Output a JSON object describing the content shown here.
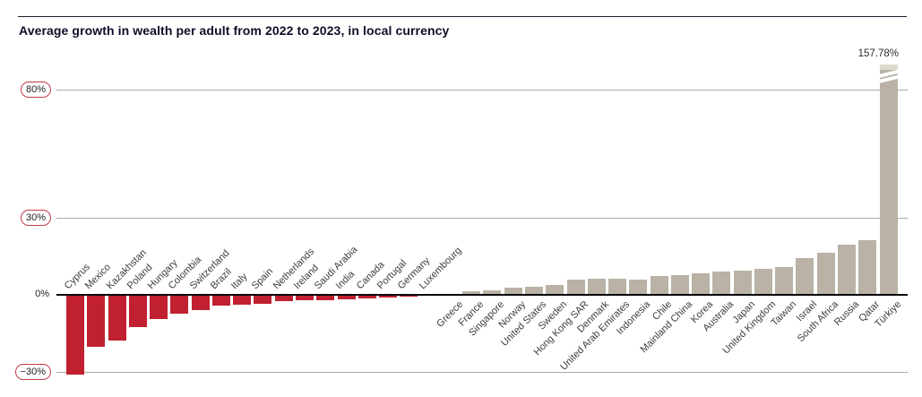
{
  "page": {
    "title": "Average growth in wealth per adult from 2022 to 2023, in local currency"
  },
  "chart_data": {
    "type": "bar",
    "title": "Average growth in wealth per adult from 2022 to 2023, in local currency",
    "xlabel": "",
    "ylabel": "",
    "grid": "horizontal",
    "legend_position": "none",
    "ylim": [
      -33,
      84
    ],
    "categories": [
      "Cyprus",
      "Mexico",
      "Kazakhstan",
      "Poland",
      "Hungary",
      "Colombia",
      "Switzerland",
      "Brazil",
      "Italy",
      "Spain",
      "Netherlands",
      "Ireland",
      "Saudi Arabia",
      "India",
      "Canada",
      "Portugal",
      "Germany",
      "Luxembourg",
      "Greece",
      "France",
      "Singapore",
      "Norway",
      "United States",
      "Sweden",
      "Hong Kong SAR",
      "Denmark",
      "United Arab Emirates",
      "Indonesia",
      "Chile",
      "Mainland China",
      "Korea",
      "Australia",
      "Japan",
      "United Kingdom",
      "Taiwan",
      "Israel",
      "South Africa",
      "Russia",
      "Qatar",
      "Türkiye"
    ],
    "values": [
      -30.6,
      -20.0,
      -17.3,
      -12.2,
      -8.9,
      -7.0,
      -5.5,
      -4.0,
      -3.4,
      -3.0,
      -2.2,
      -1.9,
      -1.6,
      -1.3,
      -1.1,
      -0.8,
      -0.5,
      -0.1,
      0.1,
      1.5,
      1.6,
      2.8,
      3.0,
      3.7,
      5.8,
      6.4,
      6.4,
      6.1,
      7.3,
      7.6,
      8.4,
      9.2,
      9.5,
      10.1,
      11.0,
      14.5,
      16.5,
      19.5,
      21.5,
      157.78
    ],
    "y_ticks": [
      {
        "label": "80%",
        "value": 80,
        "pill": true
      },
      {
        "label": "30%",
        "value": 30,
        "pill": true
      },
      {
        "label": "0%",
        "value": 0,
        "pill": false
      },
      {
        "label": "−30%",
        "value": -30,
        "pill": true
      }
    ],
    "annotation": {
      "text": "157.78%",
      "target": "Türkiye"
    },
    "broken_bar": {
      "category": "Türkiye",
      "note": "bar truncated with diagonal break marks above 80% gridline"
    },
    "colors": {
      "negative_bar": "#c02030",
      "positive_bar": "#b9b2a5",
      "broken_bar_cap": "#ddd9cc",
      "tick_pill_border": "#c23a4b",
      "title_text": "#0e0e28",
      "axis_line": "#0a0a0a",
      "gridline": "#ababab",
      "label_text": "#3d3d3d"
    }
  }
}
